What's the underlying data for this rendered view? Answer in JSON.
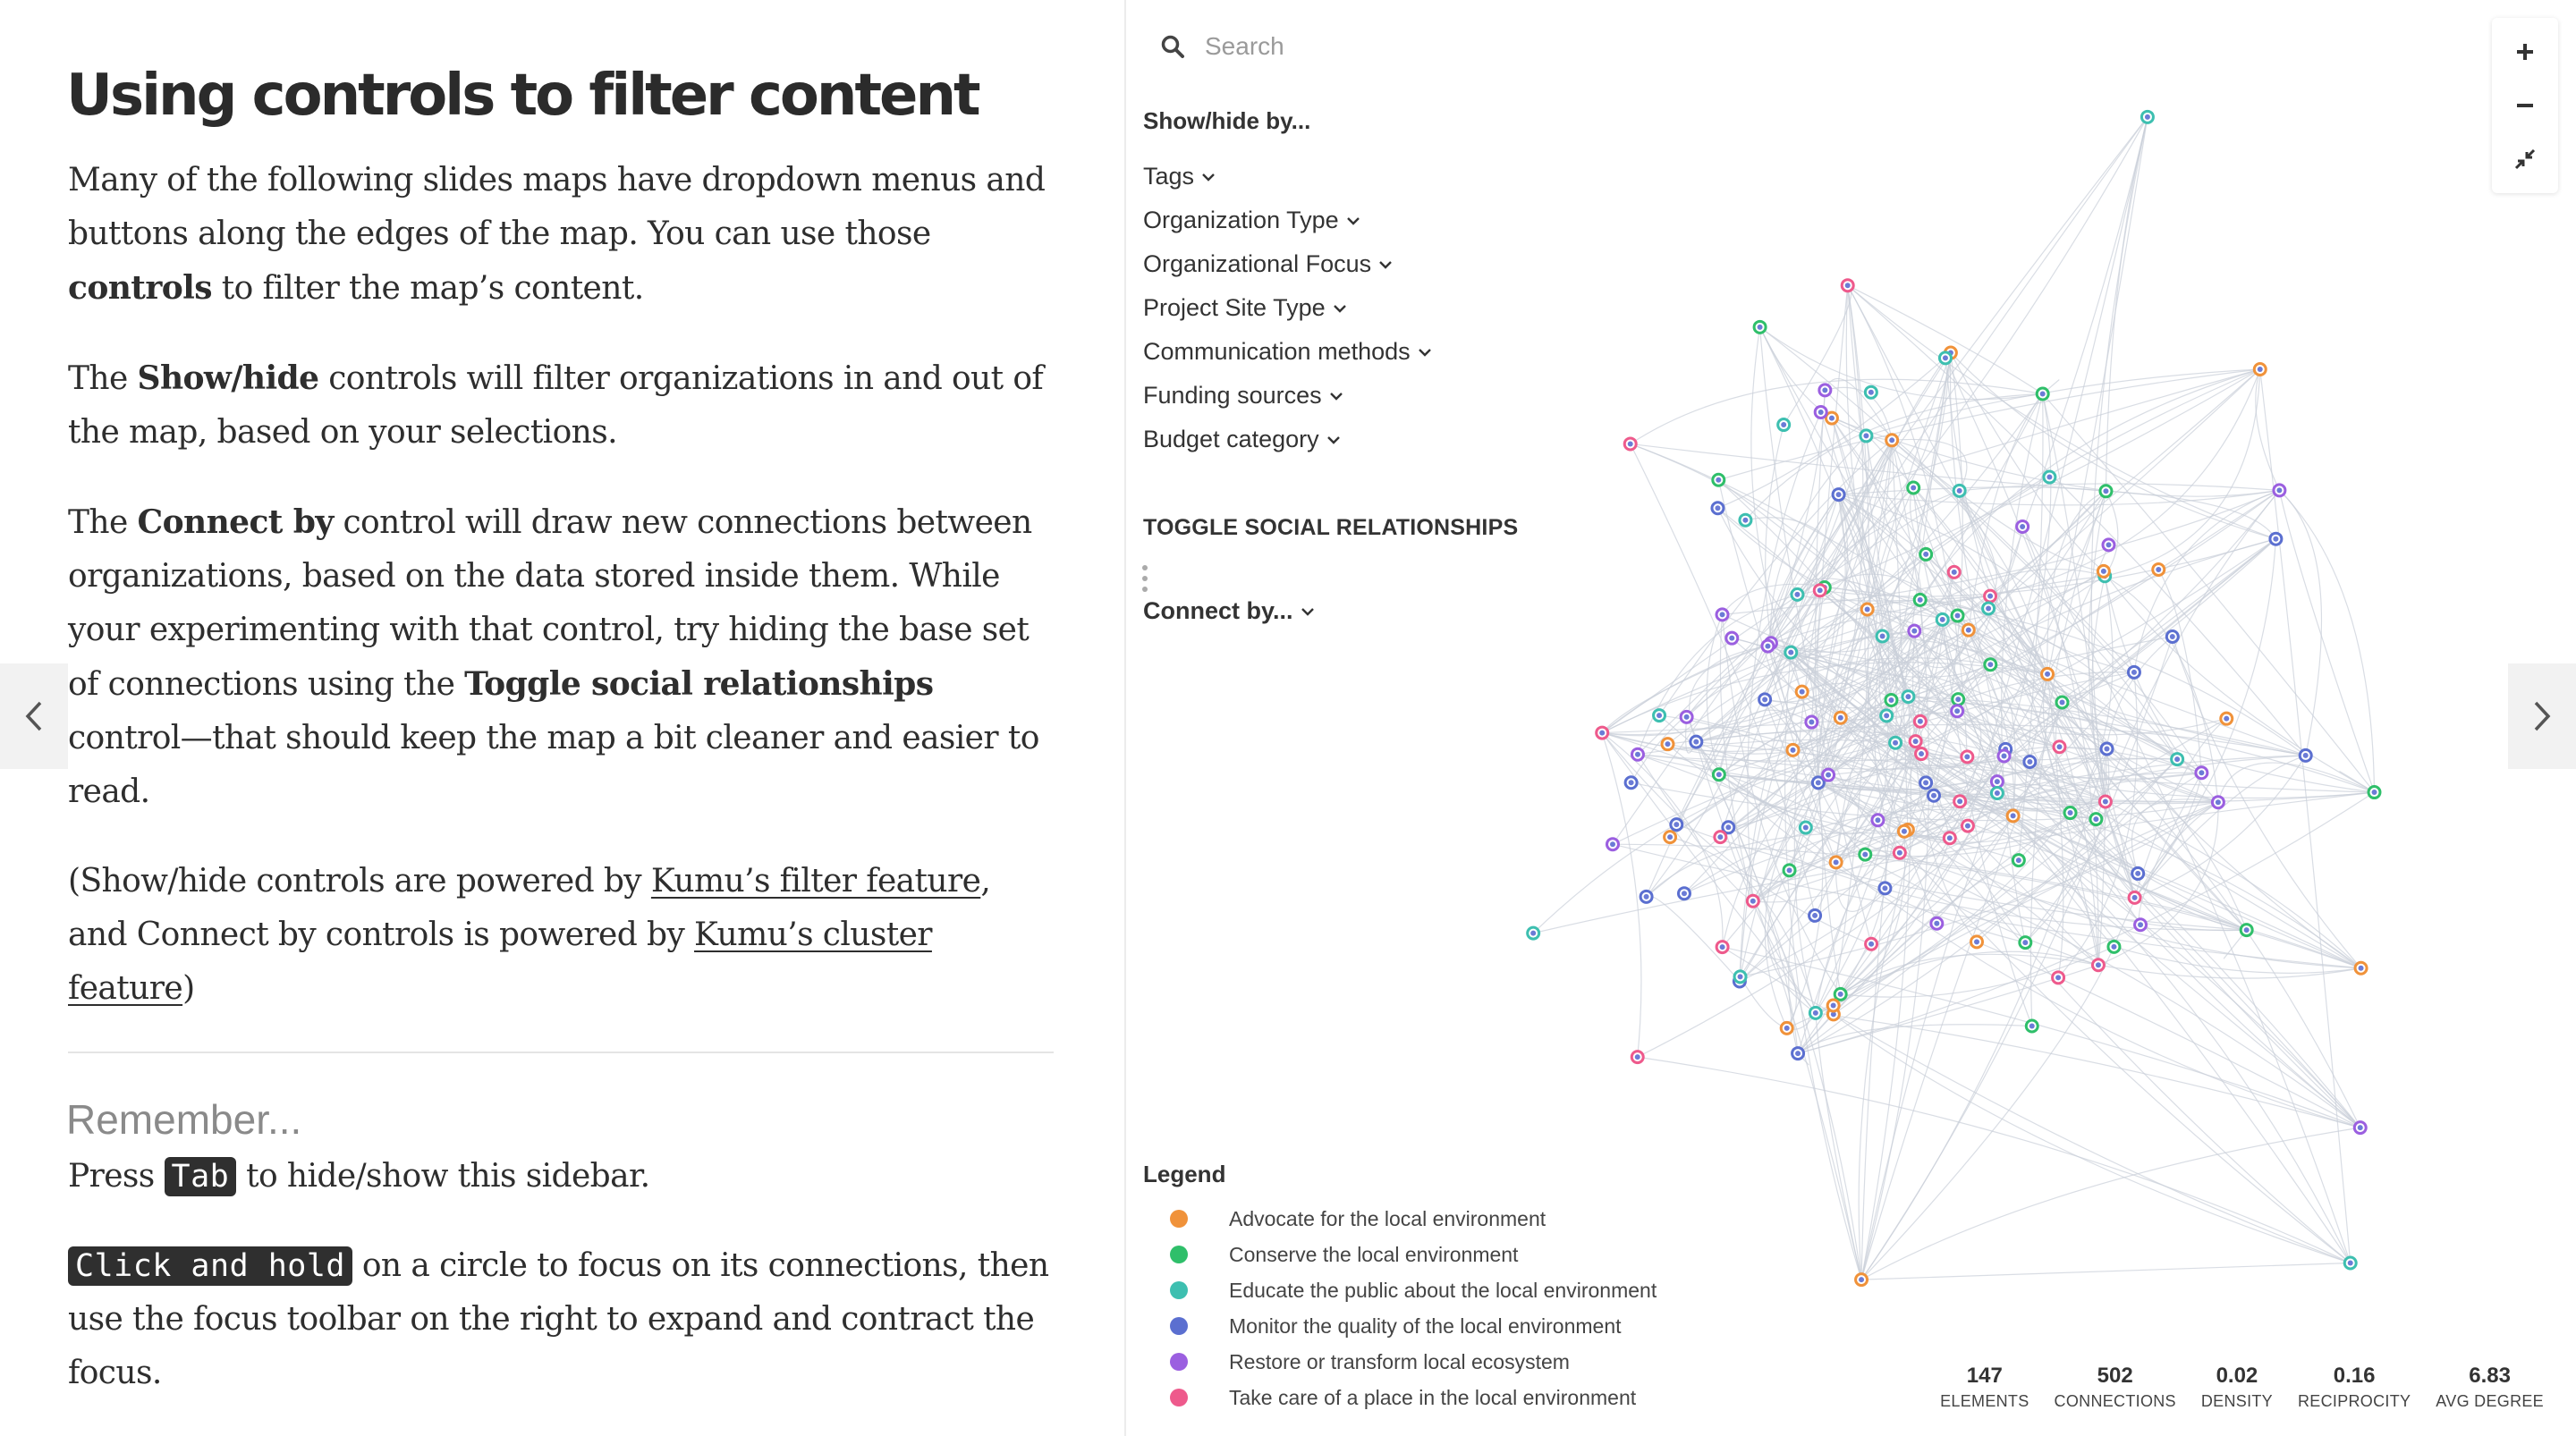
{
  "sidebar": {
    "title": "Using controls to filter content",
    "p1": {
      "a": "Many of the following slides maps have dropdown menus and buttons along the edges of the map. You can use those ",
      "b": "controls",
      "c": " to filter the map’s content."
    },
    "p2": {
      "a": "The ",
      "b": "Show/hide",
      "c": " controls will filter organizations in and out of the map, based on your selections."
    },
    "p3": {
      "a": "The ",
      "b": "Connect by",
      "c": " control will draw new connections between organizations, based on the data stored inside them. While your experimenting with that control, try hiding the base set of connections using the ",
      "d": "Toggle social relationships",
      "e": " control—that should keep the map a bit cleaner and easier to read."
    },
    "p4": {
      "a": "(Show/hide controls are powered by ",
      "link1": "Kumu’s filter feature",
      "b": ", and Connect by controls is powered by ",
      "link2": "Kumu’s cluster feature",
      "c": ")"
    },
    "remember_heading": "Remember...",
    "p5": {
      "a": "Press ",
      "key": "Tab",
      "b": " to hide/show this sidebar."
    },
    "p6": {
      "key": "Click and hold",
      "a": " on a circle to focus on its connections, then use the focus toolbar on the right to expand and contract the focus."
    }
  },
  "map": {
    "search_placeholder": "Search",
    "showhide_title": "Show/hide by...",
    "filters": [
      "Tags",
      "Organization Type",
      "Organizational Focus",
      "Project Site Type",
      "Communication methods",
      "Funding sources",
      "Budget category"
    ],
    "toggle_title": "TOGGLE SOCIAL RELATIONSHIPS",
    "connect_by": "Connect by...",
    "legend": {
      "title": "Legend",
      "items": [
        {
          "label": "Advocate for the local environment",
          "color": "#f0923a"
        },
        {
          "label": "Conserve the local environment",
          "color": "#2fbf6a"
        },
        {
          "label": "Educate the public about the local environment",
          "color": "#3dbfb0"
        },
        {
          "label": "Monitor the quality of the local environment",
          "color": "#5b6fd0"
        },
        {
          "label": "Restore or transform local ecosystem",
          "color": "#9b5fe0"
        },
        {
          "label": "Take care of a place in the local environment",
          "color": "#ee5a8c"
        }
      ]
    },
    "stats": [
      {
        "value": "147",
        "label": "ELEMENTS"
      },
      {
        "value": "502",
        "label": "CONNECTIONS"
      },
      {
        "value": "0.02",
        "label": "DENSITY"
      },
      {
        "value": "0.16",
        "label": "RECIPROCITY"
      },
      {
        "value": "6.83",
        "label": "AVG DEGREE"
      }
    ],
    "colors": {
      "edge": "#c9ced8",
      "node_center": "#6b7bd6",
      "node_ring": "#8fd3c9"
    }
  }
}
